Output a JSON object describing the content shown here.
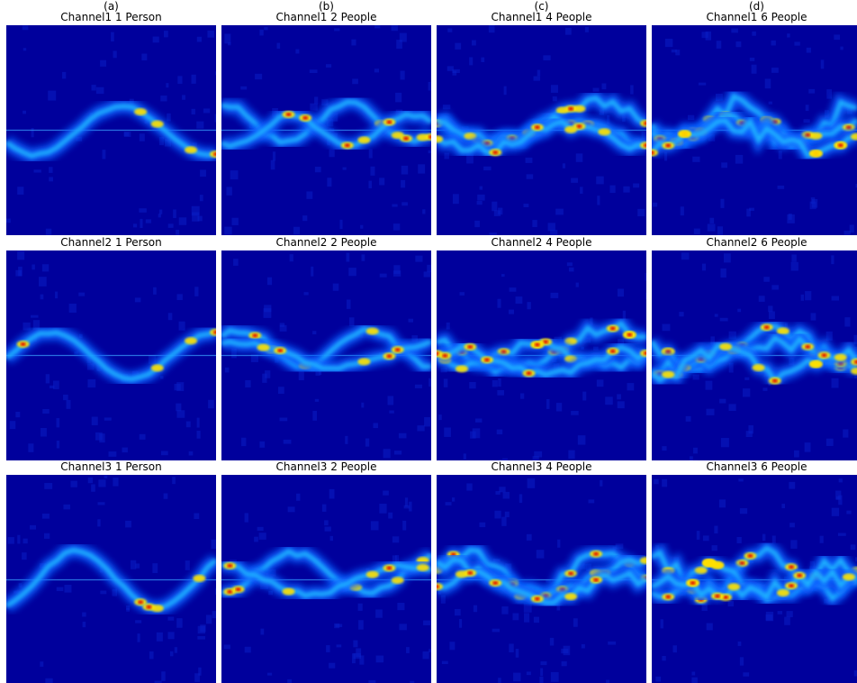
{
  "columns": [
    {
      "label": "(a)",
      "panels": [
        "Channel1 1 Person",
        "Channel2 1 Person",
        "Channel3 1 Person"
      ]
    },
    {
      "label": "(b)",
      "panels": [
        "Channel1 2 People",
        "Channel2 2 People",
        "Channel3 2 People"
      ]
    },
    {
      "label": "(c)",
      "panels": [
        "Channel1 4 People",
        "Channel2 4 People",
        "Channel3 4 People"
      ]
    },
    {
      "label": "(d)",
      "panels": [
        "Channel1 6 People",
        "Channel2 6 People",
        "Channel3 6 People"
      ]
    }
  ]
}
